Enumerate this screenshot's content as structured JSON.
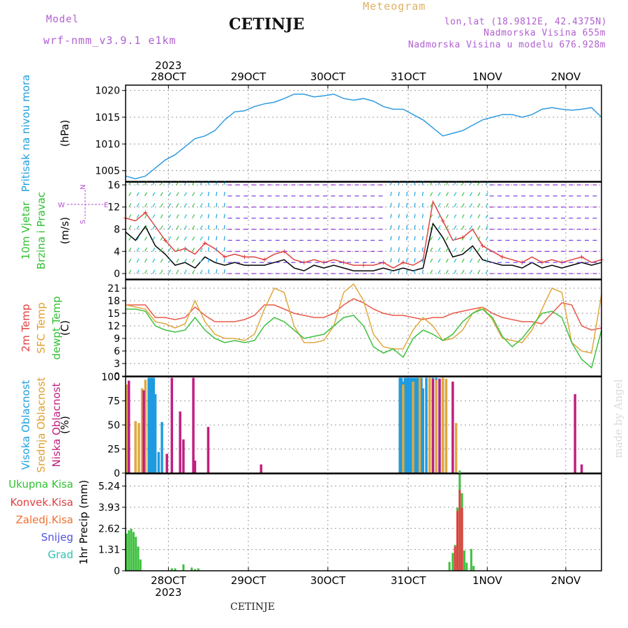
{
  "header": {
    "model_label": "Model",
    "model_name": "wrf-nmm_v3.9.1  e1km",
    "title": "CETINJE",
    "meteogram_label": "Meteogram",
    "coords": "lon,lat (18.9812E, 42.4375N)",
    "elevation": "Nadmorska Visina 655m",
    "model_elevation": "Nadmorska Visina u modelu 676.928m",
    "footer_station": "CETINJE",
    "credit": "made by Angel",
    "colors": {
      "model": "#b060d0",
      "meteogram": "#e0b060",
      "coords": "#b060d0"
    }
  },
  "chart_data": [
    {
      "type": "line",
      "panel": "pressure",
      "ylabels": [
        "Pritisak na nivou mora",
        "(hPa)"
      ],
      "ylabel_colors": [
        "#20a0e0",
        "#000000"
      ],
      "ylim": [
        1003,
        1021
      ],
      "yticks": [
        1005,
        1010,
        1015,
        1020
      ],
      "x_days": [
        "28OCT",
        "29OCT",
        "30OCT",
        "31OCT",
        "1NOV",
        "2NOV"
      ],
      "x_year": "2023",
      "grid": true,
      "series": [
        {
          "color": "#2f9be0",
          "x": [
            0,
            3,
            6,
            9,
            12,
            15,
            18,
            21,
            24,
            27,
            30,
            33,
            36,
            39,
            42,
            45,
            48,
            51,
            54,
            57,
            60,
            63,
            66,
            69,
            72,
            75,
            78,
            81,
            84,
            87,
            90,
            93,
            96,
            99,
            102,
            105,
            108,
            111,
            114,
            117,
            120,
            123,
            126,
            129,
            132,
            135,
            138,
            141,
            144
          ],
          "values": [
            1004.0,
            1003.5,
            1004.0,
            1005.5,
            1007.0,
            1008.0,
            1009.5,
            1011.0,
            1011.5,
            1012.5,
            1014.5,
            1016.0,
            1016.2,
            1017.0,
            1017.5,
            1017.8,
            1018.5,
            1019.3,
            1019.3,
            1018.8,
            1019.0,
            1019.3,
            1018.5,
            1018.2,
            1018.5,
            1018.0,
            1017.0,
            1016.5,
            1016.5,
            1015.5,
            1014.5,
            1013.0,
            1011.5,
            1012.0,
            1012.5,
            1013.5,
            1014.5,
            1015.0,
            1015.5,
            1015.5,
            1015.0,
            1015.5,
            1016.5,
            1016.8,
            1016.5,
            1016.3,
            1016.5,
            1016.8,
            1015.0
          ]
        }
      ]
    },
    {
      "type": "line",
      "panel": "wind",
      "ylabels": [
        "10m Vjetar",
        "Brzina i Pravac",
        "(m/s)"
      ],
      "ylabel_colors": [
        "#30c030",
        "#30c030",
        "#000000"
      ],
      "compass": [
        "N",
        "E",
        "S",
        "W"
      ],
      "ylim": [
        -1,
        16.5
      ],
      "yticks": [
        0,
        4,
        8,
        12,
        16
      ],
      "grid": true,
      "series": [
        {
          "name": "speed",
          "color": "#000000",
          "x": [
            0,
            3,
            6,
            9,
            12,
            15,
            18,
            21,
            24,
            27,
            30,
            33,
            36,
            39,
            42,
            45,
            48,
            51,
            54,
            57,
            60,
            63,
            66,
            69,
            72,
            75,
            78,
            81,
            84,
            87,
            90,
            93,
            96,
            99,
            102,
            105,
            108,
            111,
            114,
            117,
            120,
            123,
            126,
            129,
            132,
            135,
            138,
            141,
            144
          ],
          "values": [
            7.5,
            6.0,
            8.5,
            5.0,
            3.5,
            1.5,
            2.0,
            1.0,
            3.0,
            2.0,
            1.5,
            2.0,
            1.5,
            1.5,
            1.5,
            2.0,
            2.5,
            1.0,
            0.5,
            1.5,
            1.0,
            1.5,
            1.0,
            0.5,
            0.5,
            0.5,
            1.0,
            0.5,
            1.0,
            0.5,
            1.0,
            9.0,
            6.5,
            3.0,
            3.5,
            5.0,
            2.5,
            2.0,
            1.5,
            1.5,
            1.0,
            2.0,
            1.0,
            1.5,
            1.0,
            1.5,
            2.0,
            1.5,
            2.0
          ]
        },
        {
          "name": "gust",
          "color": "#e04040",
          "x": [
            0,
            3,
            6,
            9,
            12,
            15,
            18,
            21,
            24,
            27,
            30,
            33,
            36,
            39,
            42,
            45,
            48,
            51,
            54,
            57,
            60,
            63,
            66,
            69,
            72,
            75,
            78,
            81,
            84,
            87,
            90,
            93,
            96,
            99,
            102,
            105,
            108,
            111,
            114,
            117,
            120,
            123,
            126,
            129,
            132,
            135,
            138,
            141,
            144
          ],
          "values": [
            10.0,
            9.5,
            11.0,
            8.5,
            6.0,
            4.0,
            4.5,
            3.5,
            5.5,
            4.5,
            3.0,
            3.5,
            3.0,
            3.0,
            2.5,
            3.5,
            4.0,
            2.5,
            2.0,
            2.5,
            2.0,
            2.5,
            2.0,
            1.5,
            1.5,
            1.5,
            2.0,
            1.0,
            2.0,
            1.5,
            2.5,
            13.0,
            9.5,
            6.0,
            6.5,
            8.0,
            5.0,
            4.0,
            3.0,
            2.5,
            2.0,
            3.0,
            2.0,
            2.5,
            2.0,
            2.5,
            3.0,
            2.0,
            2.5
          ]
        }
      ]
    },
    {
      "type": "line",
      "panel": "temperature",
      "ylabels": [
        "2m Temp",
        "SFC Temp",
        "dewpt Temp",
        "(C)"
      ],
      "ylabel_colors": [
        "#e04040",
        "#e0a030",
        "#30c030",
        "#000000"
      ],
      "ylim": [
        0,
        23
      ],
      "yticks": [
        0,
        3,
        6,
        9,
        12,
        15,
        18,
        21
      ],
      "grid": true,
      "series": [
        {
          "color": "#e85a4a",
          "x": [
            0,
            3,
            6,
            9,
            12,
            15,
            18,
            21,
            24,
            27,
            30,
            33,
            36,
            39,
            42,
            45,
            48,
            51,
            54,
            57,
            60,
            63,
            66,
            69,
            72,
            75,
            78,
            81,
            84,
            87,
            90,
            93,
            96,
            99,
            102,
            105,
            108,
            111,
            114,
            117,
            120,
            123,
            126,
            129,
            132,
            135,
            138,
            141,
            144
          ],
          "values": [
            17,
            17,
            17,
            14,
            14,
            13.5,
            14,
            16.5,
            14.5,
            13,
            13,
            13,
            13.5,
            14.5,
            17,
            17,
            16,
            15,
            14.5,
            14,
            14,
            15,
            17,
            18.5,
            17.5,
            16,
            15,
            14.5,
            14.5,
            14,
            13.5,
            14,
            14,
            15,
            15.5,
            16,
            16.5,
            15,
            14,
            13.5,
            13,
            13,
            12.5,
            15,
            17.5,
            17,
            12,
            11,
            11.5
          ]
        },
        {
          "color": "#e0a840",
          "x": [
            0,
            3,
            6,
            9,
            12,
            15,
            18,
            21,
            24,
            27,
            30,
            33,
            36,
            39,
            42,
            45,
            48,
            51,
            54,
            57,
            60,
            63,
            66,
            69,
            72,
            75,
            78,
            81,
            84,
            87,
            90,
            93,
            96,
            99,
            102,
            105,
            108,
            111,
            114,
            117,
            120,
            123,
            126,
            129,
            132,
            135,
            138,
            141,
            144
          ],
          "values": [
            17,
            16.5,
            16,
            13,
            12.5,
            11.5,
            12.5,
            18,
            13,
            10,
            9,
            9,
            8.5,
            10,
            16,
            21,
            20,
            12,
            8,
            8,
            8.5,
            12,
            20,
            22,
            18,
            10,
            7,
            6.5,
            6.5,
            11,
            14,
            12,
            8.5,
            9,
            11,
            15,
            16.5,
            13.5,
            9,
            8.5,
            8,
            11,
            16,
            21,
            20,
            8,
            6,
            5.5,
            19.5
          ]
        },
        {
          "color": "#40c040",
          "x": [
            0,
            3,
            6,
            9,
            12,
            15,
            18,
            21,
            24,
            27,
            30,
            33,
            36,
            39,
            42,
            45,
            48,
            51,
            54,
            57,
            60,
            63,
            66,
            69,
            72,
            75,
            78,
            81,
            84,
            87,
            90,
            93,
            96,
            99,
            102,
            105,
            108,
            111,
            114,
            117,
            120,
            123,
            126,
            129,
            132,
            135,
            138,
            141,
            144
          ],
          "values": [
            16,
            16,
            15.5,
            12,
            11,
            10.5,
            11,
            14,
            11,
            9,
            8,
            8.5,
            8,
            8.5,
            12,
            14,
            13,
            11,
            9,
            9.5,
            10,
            12,
            14,
            14.5,
            12,
            7,
            5.5,
            6.5,
            4.5,
            9,
            11,
            10,
            8.5,
            10,
            13,
            15,
            16,
            14,
            9.5,
            7,
            9,
            12,
            15,
            15.5,
            14,
            8,
            4,
            2,
            11
          ]
        }
      ]
    },
    {
      "type": "bar",
      "panel": "cloud_cover",
      "ylabels": [
        "Visoka Oblacnost",
        "Srednja Oblacnost",
        "Niska Oblacnost",
        "(%)"
      ],
      "ylabel_colors": [
        "#20a0e0",
        "#e0a030",
        "#c02080",
        "#000000"
      ],
      "ylim": [
        0,
        100
      ],
      "yticks": [
        0,
        25,
        50,
        75,
        100
      ],
      "grid": true,
      "series": [
        {
          "name": "high",
          "color": "#1f9be0",
          "x": [
            7,
            7.5,
            8,
            8.5,
            9,
            10,
            11,
            83,
            83.5,
            84,
            84.5,
            85,
            85.5,
            86,
            86.5,
            87,
            87.5,
            88,
            88.5,
            89,
            89.5,
            90,
            91,
            92,
            93,
            94,
            95,
            96
          ],
          "values": [
            99,
            99,
            99,
            99,
            82,
            22,
            53,
            99,
            99,
            95,
            99,
            99,
            99,
            99,
            99,
            99,
            99,
            99,
            99,
            99,
            99,
            88,
            99,
            99,
            99,
            99,
            98,
            99
          ]
        },
        {
          "name": "middle",
          "color": "#e0a840",
          "x": [
            0.5,
            3,
            4,
            5,
            6,
            84,
            87,
            89,
            92,
            94,
            96,
            97,
            100
          ],
          "values": [
            92,
            54,
            52,
            88,
            97,
            92,
            95,
            99,
            99,
            97,
            99,
            98,
            52
          ]
        },
        {
          "name": "low",
          "color": "#c02080",
          "x": [
            1,
            5.5,
            12.5,
            14,
            16.5,
            17.5,
            20.5,
            21,
            25,
            41,
            93,
            95,
            99,
            136,
            138
          ],
          "values": [
            96,
            86,
            20,
            99,
            64,
            35,
            99,
            13,
            48,
            9,
            98,
            98,
            95,
            82,
            9
          ]
        }
      ]
    },
    {
      "type": "bar",
      "panel": "precipitation",
      "ylabels": [
        "Ukupna Kisa",
        "Konvek.Kisa",
        "Zaledj.Kisa",
        "Snijeg",
        "Grad",
        "1hr Precip (mm)"
      ],
      "ylabel_colors": [
        "#30c030",
        "#e04040",
        "#f07030",
        "#5050e0",
        "#30c0b0",
        "#000000"
      ],
      "ylim": [
        0,
        6
      ],
      "yticks": [
        0,
        1.31,
        2.62,
        3.93,
        5.24
      ],
      "grid": true,
      "series": [
        {
          "name": "total",
          "color": "#40c040",
          "x": [
            0.3,
            1,
            1.7,
            2.4,
            3.1,
            3.8,
            4.5,
            14,
            15,
            17.5,
            20,
            21,
            22,
            98,
            99,
            99.7,
            100.4,
            101.1,
            101.8,
            102.5,
            103.2,
            104.6,
            105.3
          ],
          "values": [
            2.3,
            2.5,
            2.6,
            2.4,
            2.1,
            1.5,
            0.7,
            0.15,
            0.15,
            0.4,
            0.2,
            0.1,
            0.15,
            0.55,
            1.1,
            1.6,
            3.9,
            6.2,
            4.8,
            1.25,
            0.5,
            1.35,
            0.3
          ]
        },
        {
          "name": "convective",
          "color": "#e04040",
          "x": [
            99.7,
            100.4,
            101.1,
            101.8
          ],
          "values": [
            1.5,
            3.7,
            5.0,
            3.9
          ]
        }
      ]
    }
  ]
}
